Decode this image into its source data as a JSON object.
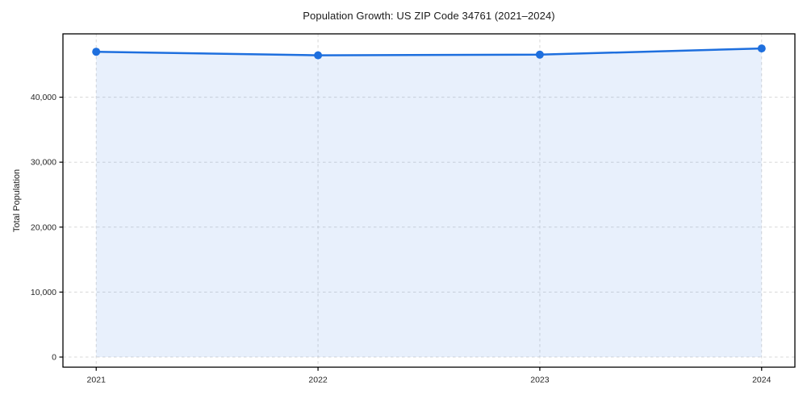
{
  "chart_data": {
    "type": "area",
    "title": "Population Growth: US ZIP Code 34761 (2021–2024)",
    "xlabel": "",
    "ylabel": "Total Population",
    "categories": [
      "2021",
      "2022",
      "2023",
      "2024"
    ],
    "x": [
      2021,
      2022,
      2023,
      2024
    ],
    "series": [
      {
        "name": "Total Population",
        "values": [
          47000,
          46450,
          46550,
          47500
        ]
      }
    ],
    "values": [
      47000,
      46450,
      46550,
      47500
    ],
    "yticks": [
      0,
      10000,
      20000,
      30000,
      40000
    ],
    "ytick_labels": [
      "0",
      "10,000",
      "20,000",
      "30,000",
      "40,000"
    ],
    "xlim": [
      2020.85,
      2024.15
    ],
    "ylim": [
      -1550,
      49750
    ],
    "grid": "on",
    "grid_style": "dashed",
    "legend": "none",
    "colors": {
      "line": "#1E6FDE",
      "marker": "#1E6FDE",
      "fill": "rgba(30,111,222,0.10)",
      "grid": "#d8d8d8",
      "frame": "#000000",
      "tick_text": "#262626"
    }
  }
}
